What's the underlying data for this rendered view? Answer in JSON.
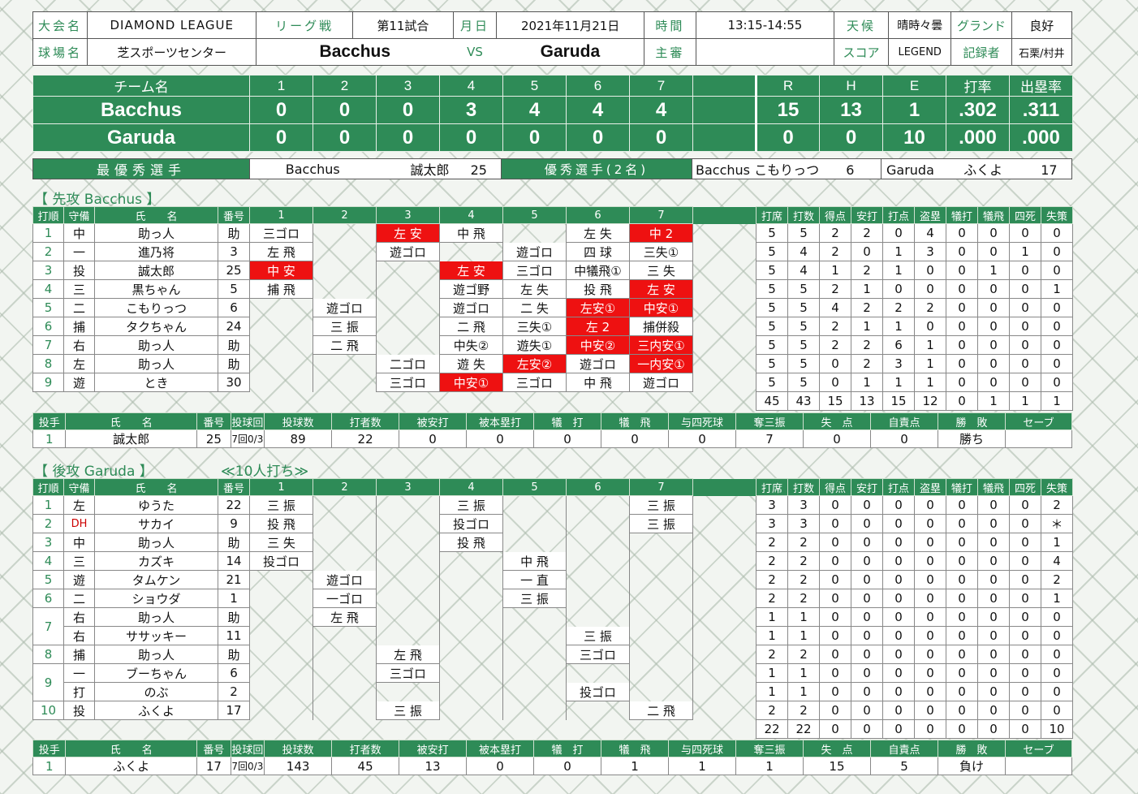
{
  "header": {
    "tournament_label": "大会名",
    "tournament": "DIAMOND LEAGUE",
    "game_type_label": "リーグ戦",
    "game_no": "第11試合",
    "date_label": "月日",
    "date": "2021年11月21日",
    "time_label": "時間",
    "time": "13:15-14:55",
    "weather_label": "天候",
    "weather": "晴時々曇",
    "ground_label": "グランド",
    "ground": "良好",
    "venue_label": "球場名",
    "venue": "芝スポーツセンター",
    "home_team": "Bacchus",
    "vs": "VS",
    "away_team": "Garuda",
    "umpire_label": "主審",
    "umpire": "",
    "score_label": "スコア",
    "scorer_app": "LEGEND",
    "recorder_label": "記録者",
    "recorder": "石栗/村井"
  },
  "scoreboard": {
    "headers": [
      "チーム名",
      "1",
      "2",
      "3",
      "4",
      "5",
      "6",
      "7",
      "",
      "R",
      "H",
      "E",
      "打率",
      "出塁率"
    ],
    "rows": [
      {
        "team": "Bacchus",
        "innings": [
          "0",
          "0",
          "0",
          "3",
          "4",
          "4",
          "4",
          ""
        ],
        "R": "15",
        "H": "13",
        "E": "1",
        "avg": ".302",
        "obp": ".311"
      },
      {
        "team": "Garuda",
        "innings": [
          "0",
          "0",
          "0",
          "0",
          "0",
          "0",
          "0",
          ""
        ],
        "R": "0",
        "H": "0",
        "E": "10",
        "avg": ".000",
        "obp": ".000"
      }
    ]
  },
  "awards": {
    "mvp_label": "最優秀選手",
    "mvp_team": "Bacchus",
    "mvp_name": "誠太郎",
    "mvp_no": "25",
    "excellent_label": "優秀選手(2名)",
    "ex1_team": "Bacchus",
    "ex1_name": "こもりっつ",
    "ex1_no": "6",
    "ex2_team": "Garuda",
    "ex2_name": "ふくよ",
    "ex2_no": "17"
  },
  "top": {
    "title": "【 先攻 Bacchus 】",
    "note": "",
    "headers": [
      "打順",
      "守備",
      "氏　　名",
      "番号",
      "1",
      "2",
      "3",
      "4",
      "5",
      "6",
      "7",
      "",
      "打席",
      "打数",
      "得点",
      "安打",
      "打点",
      "盗塁",
      "犠打",
      "犠飛",
      "四死",
      "失策"
    ],
    "rows": [
      {
        "order": "1",
        "pos": "中",
        "name": "助っ人",
        "no": "助",
        "inn": [
          "三ゴロ",
          "",
          "左 安",
          "中 飛",
          "",
          "左 失",
          "中 2"
        ],
        "red": [
          false,
          false,
          true,
          false,
          false,
          false,
          true
        ],
        "stats": [
          "5",
          "5",
          "2",
          "2",
          "0",
          "4",
          "0",
          "0",
          "0",
          "0"
        ]
      },
      {
        "order": "2",
        "pos": "一",
        "name": "進乃将",
        "no": "3",
        "inn": [
          "左 飛",
          "",
          "遊ゴロ",
          "",
          "遊ゴロ",
          "四 球",
          "三失①"
        ],
        "red": [
          false,
          false,
          false,
          false,
          false,
          false,
          false
        ],
        "stats": [
          "5",
          "4",
          "2",
          "0",
          "1",
          "3",
          "0",
          "0",
          "1",
          "0"
        ]
      },
      {
        "order": "3",
        "pos": "投",
        "name": "誠太郎",
        "no": "25",
        "inn": [
          "中 安",
          "",
          "",
          "左 安",
          "三ゴロ",
          "中犠飛①",
          "三 失"
        ],
        "red": [
          true,
          false,
          false,
          true,
          false,
          false,
          false
        ],
        "stats": [
          "5",
          "4",
          "1",
          "2",
          "1",
          "0",
          "0",
          "1",
          "0",
          "0"
        ]
      },
      {
        "order": "4",
        "pos": "三",
        "name": "黒ちゃん",
        "no": "5",
        "inn": [
          "捕 飛",
          "",
          "",
          "遊ゴ野",
          "左 失",
          "投 飛",
          "左 安"
        ],
        "red": [
          false,
          false,
          false,
          false,
          false,
          false,
          true
        ],
        "stats": [
          "5",
          "5",
          "2",
          "1",
          "0",
          "0",
          "0",
          "0",
          "0",
          "1"
        ]
      },
      {
        "order": "5",
        "pos": "二",
        "name": "こもりっつ",
        "no": "6",
        "inn": [
          "",
          "遊ゴロ",
          "",
          "遊ゴロ",
          "二 失",
          "左安①",
          "中安①"
        ],
        "red": [
          false,
          false,
          false,
          false,
          false,
          true,
          true
        ],
        "stats": [
          "5",
          "5",
          "4",
          "2",
          "2",
          "2",
          "0",
          "0",
          "0",
          "0"
        ]
      },
      {
        "order": "6",
        "pos": "捕",
        "name": "タクちゃん",
        "no": "24",
        "inn": [
          "",
          "三 振",
          "",
          "二 飛",
          "三失①",
          "左 2",
          "捕併殺"
        ],
        "red": [
          false,
          false,
          false,
          false,
          false,
          true,
          false
        ],
        "stats": [
          "5",
          "5",
          "2",
          "1",
          "1",
          "0",
          "0",
          "0",
          "0",
          "0"
        ]
      },
      {
        "order": "7",
        "pos": "右",
        "name": "助っ人",
        "no": "助",
        "inn": [
          "",
          "二 飛",
          "",
          "中失②",
          "遊失①",
          "中安②",
          "三内安①"
        ],
        "red": [
          false,
          false,
          false,
          false,
          false,
          true,
          true
        ],
        "stats": [
          "5",
          "5",
          "2",
          "2",
          "6",
          "1",
          "0",
          "0",
          "0",
          "0"
        ]
      },
      {
        "order": "8",
        "pos": "左",
        "name": "助っ人",
        "no": "助",
        "inn": [
          "",
          "",
          "二ゴロ",
          "遊 失",
          "左安②",
          "遊ゴロ",
          "一内安①"
        ],
        "red": [
          false,
          false,
          false,
          false,
          true,
          false,
          true
        ],
        "stats": [
          "5",
          "5",
          "0",
          "2",
          "3",
          "1",
          "0",
          "0",
          "0",
          "0"
        ]
      },
      {
        "order": "9",
        "pos": "遊",
        "name": "とき",
        "no": "30",
        "inn": [
          "",
          "",
          "三ゴロ",
          "中安①",
          "三ゴロ",
          "中 飛",
          "遊ゴロ"
        ],
        "red": [
          false,
          false,
          false,
          true,
          false,
          false,
          false
        ],
        "stats": [
          "5",
          "5",
          "0",
          "1",
          "1",
          "1",
          "0",
          "0",
          "0",
          "0"
        ]
      }
    ],
    "totals": [
      "45",
      "43",
      "15",
      "13",
      "15",
      "12",
      "0",
      "1",
      "1",
      "1"
    ]
  },
  "top_pitch": {
    "headers": [
      "投手",
      "氏　　名",
      "番号",
      "投球回",
      "投球数",
      "打者数",
      "被安打",
      "被本塁打",
      "犠　打",
      "犠　飛",
      "与四死球",
      "奪三振",
      "失　点",
      "自責点",
      "勝　敗",
      "セーブ"
    ],
    "rows": [
      {
        "order": "1",
        "name": "誠太郎",
        "no": "25",
        "ip": "7回0/3",
        "pitches": "89",
        "batters": "22",
        "hits": "0",
        "hr": "0",
        "sac": "0",
        "sf": "0",
        "bb": "0",
        "so": "7",
        "runs": "0",
        "er": "0",
        "result": "勝ち",
        "save": ""
      }
    ]
  },
  "bottom": {
    "title": "【 後攻 Garuda 】",
    "note": "≪10人打ち≫",
    "headers": [
      "打順",
      "守備",
      "氏　　名",
      "番号",
      "1",
      "2",
      "3",
      "4",
      "5",
      "6",
      "7",
      "",
      "打席",
      "打数",
      "得点",
      "安打",
      "打点",
      "盗塁",
      "犠打",
      "犠飛",
      "四死",
      "失策"
    ],
    "rows": [
      {
        "order": "1",
        "pos": "左",
        "name": "ゆうた",
        "no": "22",
        "inn": [
          "三 振",
          "",
          "",
          "三 振",
          "",
          "",
          "三 振"
        ],
        "stats": [
          "3",
          "3",
          "0",
          "0",
          "0",
          "0",
          "0",
          "0",
          "0",
          "2"
        ]
      },
      {
        "order": "2",
        "pos": "DH",
        "name": "サカイ",
        "no": "9",
        "inn": [
          "投 飛",
          "",
          "",
          "投ゴロ",
          "",
          "",
          "三 振"
        ],
        "stats": [
          "3",
          "3",
          "0",
          "0",
          "0",
          "0",
          "0",
          "0",
          "0",
          "＊"
        ]
      },
      {
        "order": "3",
        "pos": "中",
        "name": "助っ人",
        "no": "助",
        "inn": [
          "三 失",
          "",
          "",
          "投 飛",
          "",
          "",
          ""
        ],
        "stats": [
          "2",
          "2",
          "0",
          "0",
          "0",
          "0",
          "0",
          "0",
          "0",
          "1"
        ]
      },
      {
        "order": "4",
        "pos": "三",
        "name": "カズキ",
        "no": "14",
        "inn": [
          "投ゴロ",
          "",
          "",
          "",
          "中 飛",
          "",
          ""
        ],
        "stats": [
          "2",
          "2",
          "0",
          "0",
          "0",
          "0",
          "0",
          "0",
          "0",
          "4"
        ]
      },
      {
        "order": "5",
        "pos": "遊",
        "name": "タムケン",
        "no": "21",
        "inn": [
          "",
          "遊ゴロ",
          "",
          "",
          "一 直",
          "",
          ""
        ],
        "stats": [
          "2",
          "2",
          "0",
          "0",
          "0",
          "0",
          "0",
          "0",
          "0",
          "2"
        ]
      },
      {
        "order": "6",
        "pos": "二",
        "name": "ショウダ",
        "no": "1",
        "inn": [
          "",
          "一ゴロ",
          "",
          "",
          "三 振",
          "",
          ""
        ],
        "stats": [
          "2",
          "2",
          "0",
          "0",
          "0",
          "0",
          "0",
          "0",
          "0",
          "1"
        ]
      },
      {
        "order": "7",
        "pos": "右",
        "name": "助っ人",
        "no": "助",
        "inn": [
          "",
          "左 飛",
          "",
          "",
          "",
          "",
          ""
        ],
        "stats": [
          "1",
          "1",
          "0",
          "0",
          "0",
          "0",
          "0",
          "0",
          "0",
          "0"
        ]
      },
      {
        "order": "",
        "pos": "右",
        "name": "ササッキー",
        "no": "11",
        "inn": [
          "",
          "",
          "",
          "",
          "",
          "三 振",
          ""
        ],
        "stats": [
          "1",
          "1",
          "0",
          "0",
          "0",
          "0",
          "0",
          "0",
          "0",
          "0"
        ]
      },
      {
        "order": "8",
        "pos": "捕",
        "name": "助っ人",
        "no": "助",
        "inn": [
          "",
          "",
          "左 飛",
          "",
          "",
          "三ゴロ",
          ""
        ],
        "stats": [
          "2",
          "2",
          "0",
          "0",
          "0",
          "0",
          "0",
          "0",
          "0",
          "0"
        ]
      },
      {
        "order": "9",
        "pos": "一",
        "name": "ブーちゃん",
        "no": "6",
        "inn": [
          "",
          "",
          "三ゴロ",
          "",
          "",
          "",
          ""
        ],
        "stats": [
          "1",
          "1",
          "0",
          "0",
          "0",
          "0",
          "0",
          "0",
          "0",
          "0"
        ]
      },
      {
        "order": "",
        "pos": "打",
        "name": "のぶ",
        "no": "2",
        "inn": [
          "",
          "",
          "",
          "",
          "",
          "投ゴロ",
          ""
        ],
        "stats": [
          "1",
          "1",
          "0",
          "0",
          "0",
          "0",
          "0",
          "0",
          "0",
          "0"
        ]
      },
      {
        "order": "10",
        "pos": "投",
        "name": "ふくよ",
        "no": "17",
        "inn": [
          "",
          "",
          "三 振",
          "",
          "",
          "",
          "二 飛"
        ],
        "stats": [
          "2",
          "2",
          "0",
          "0",
          "0",
          "0",
          "0",
          "0",
          "0",
          "0"
        ]
      }
    ],
    "totals": [
      "22",
      "22",
      "0",
      "0",
      "0",
      "0",
      "0",
      "0",
      "0",
      "10"
    ]
  },
  "bottom_pitch": {
    "headers": [
      "投手",
      "氏　　名",
      "番号",
      "投球回",
      "投球数",
      "打者数",
      "被安打",
      "被本塁打",
      "犠　打",
      "犠　飛",
      "与四死球",
      "奪三振",
      "失　点",
      "自責点",
      "勝　敗",
      "セーブ"
    ],
    "rows": [
      {
        "order": "1",
        "name": "ふくよ",
        "no": "17",
        "ip": "7回0/3",
        "pitches": "143",
        "batters": "45",
        "hits": "13",
        "hr": "0",
        "sac": "0",
        "sf": "1",
        "bb": "1",
        "so": "1",
        "runs": "15",
        "er": "5",
        "result": "負け",
        "save": ""
      }
    ]
  }
}
